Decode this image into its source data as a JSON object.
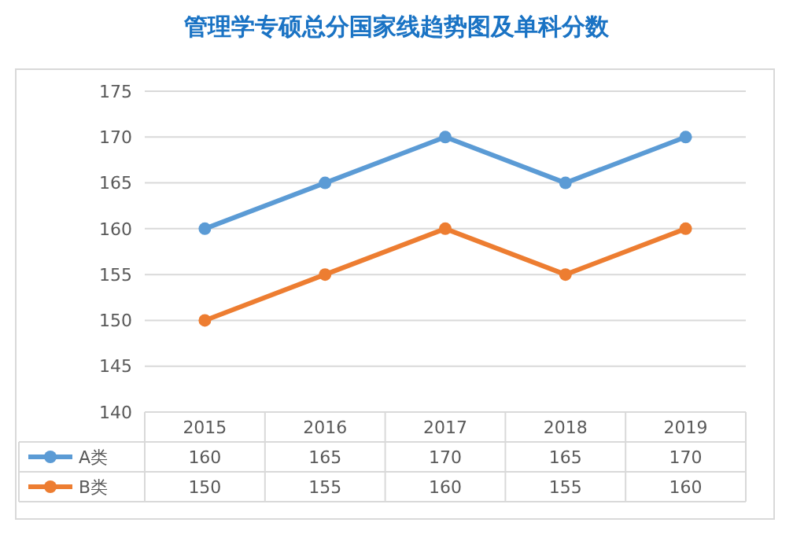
{
  "chart_data": {
    "type": "line",
    "title": "管理学专硕总分国家线趋势图及单科分数",
    "categories": [
      "2015",
      "2016",
      "2017",
      "2018",
      "2019"
    ],
    "series": [
      {
        "name": "A类",
        "color": "#5b9bd5",
        "values": [
          160,
          165,
          170,
          165,
          170
        ]
      },
      {
        "name": "B类",
        "color": "#ed7d31",
        "values": [
          150,
          155,
          160,
          155,
          160
        ]
      }
    ],
    "ylim": [
      140,
      175
    ],
    "yticks": [
      140,
      145,
      150,
      155,
      160,
      165,
      170,
      175
    ],
    "grid": "y",
    "marker": "circle",
    "data_labels": true,
    "legend": "bottom"
  }
}
